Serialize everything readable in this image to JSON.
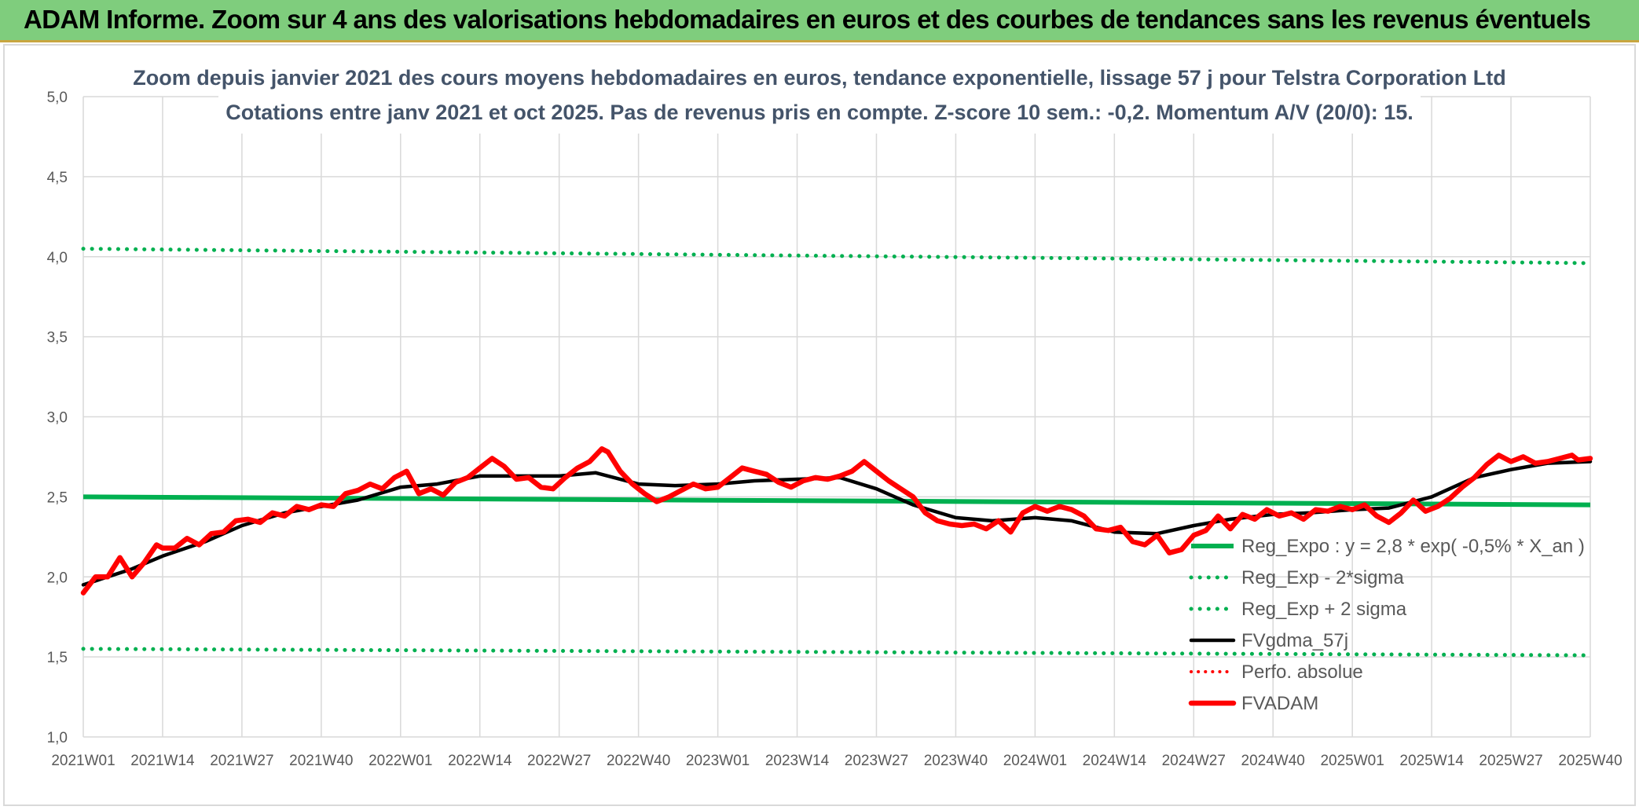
{
  "header": {
    "title": "ADAM Informe. Zoom sur 4 ans des valorisations hebdomadaires en euros et des courbes de tendances sans les revenus éventuels"
  },
  "chart_data": {
    "type": "line",
    "title_line1": "Zoom depuis janvier 2021 des cours moyens hebdomadaires en euros, tendance exponentielle, lissage 57 j pour Telstra Corporation Ltd",
    "title_line2": "Cotations entre janv 2021 et oct 2025. Pas de revenus pris en compte. Z-score 10 sem.: -0,2. Momentum A/V (20/0): 15.",
    "ylim": [
      1.0,
      5.0
    ],
    "ytick_labels": [
      "1,0",
      "1,5",
      "2,0",
      "2,5",
      "3,0",
      "3,5",
      "4,0",
      "4,5",
      "5,0"
    ],
    "ytick_values": [
      1.0,
      1.5,
      2.0,
      2.5,
      3.0,
      3.5,
      4.0,
      4.5,
      5.0
    ],
    "xlim": [
      0,
      247
    ],
    "xtick_labels": [
      "2021W01",
      "2021W14",
      "2021W27",
      "2021W40",
      "2022W01",
      "2022W14",
      "2022W27",
      "2022W40",
      "2023W01",
      "2023W14",
      "2023W27",
      "2023W40",
      "2024W01",
      "2024W14",
      "2024W27",
      "2024W40",
      "2025W01",
      "2025W14",
      "2025W27",
      "2025W40"
    ],
    "xtick_values": [
      0,
      13,
      26,
      39,
      52,
      65,
      78,
      91,
      104,
      117,
      130,
      143,
      156,
      169,
      182,
      195,
      208,
      221,
      234,
      247
    ],
    "grid": true,
    "legend_position": "bottom-right",
    "colors": {
      "green": "#00b050",
      "black": "#000000",
      "red": "#ff0000",
      "grid": "#d9d9d9"
    },
    "series": [
      {
        "name": "Reg_Expo : y = 2,8 * exp( -0,5% *  X_an )",
        "style": "solid-green",
        "x": [
          0,
          247
        ],
        "y": [
          2.5,
          2.45
        ]
      },
      {
        "name": "Reg_Exp - 2*sigma",
        "style": "dotted-green",
        "x": [
          0,
          247
        ],
        "y": [
          1.55,
          1.51
        ]
      },
      {
        "name": "Reg_Exp + 2 sigma",
        "style": "dotted-green",
        "x": [
          0,
          247
        ],
        "y": [
          4.05,
          3.96
        ]
      },
      {
        "name": "FVgdma_57j",
        "style": "solid-black",
        "x": [
          0,
          8,
          13,
          20,
          26,
          33,
          39,
          45,
          52,
          58,
          65,
          72,
          78,
          84,
          91,
          97,
          104,
          110,
          117,
          124,
          130,
          136,
          143,
          149,
          156,
          162,
          169,
          176,
          182,
          188,
          195,
          201,
          208,
          214,
          221,
          228,
          234,
          240,
          247
        ],
        "y": [
          1.95,
          2.05,
          2.13,
          2.22,
          2.32,
          2.4,
          2.44,
          2.48,
          2.56,
          2.58,
          2.63,
          2.63,
          2.63,
          2.65,
          2.58,
          2.57,
          2.58,
          2.6,
          2.61,
          2.62,
          2.55,
          2.45,
          2.37,
          2.35,
          2.37,
          2.35,
          2.28,
          2.27,
          2.32,
          2.36,
          2.39,
          2.4,
          2.42,
          2.43,
          2.5,
          2.62,
          2.67,
          2.71,
          2.72
        ]
      },
      {
        "name": "Perfo. absolue",
        "style": "dotted-red",
        "x": [],
        "y": []
      },
      {
        "name": "FVADAM",
        "style": "solid-red-thick",
        "x": [
          0,
          2,
          4,
          6,
          8,
          10,
          12,
          13,
          15,
          17,
          19,
          21,
          23,
          25,
          27,
          29,
          31,
          33,
          35,
          37,
          39,
          41,
          43,
          45,
          47,
          49,
          51,
          53,
          55,
          57,
          59,
          61,
          63,
          65,
          67,
          69,
          71,
          73,
          75,
          77,
          79,
          81,
          83,
          85,
          86,
          88,
          90,
          92,
          94,
          96,
          98,
          100,
          102,
          104,
          106,
          108,
          110,
          112,
          114,
          116,
          118,
          120,
          122,
          124,
          126,
          128,
          130,
          132,
          134,
          136,
          138,
          140,
          142,
          144,
          146,
          148,
          150,
          152,
          154,
          156,
          158,
          160,
          162,
          164,
          166,
          168,
          170,
          172,
          174,
          176,
          178,
          180,
          182,
          184,
          186,
          188,
          190,
          192,
          194,
          196,
          198,
          200,
          202,
          204,
          206,
          208,
          210,
          212,
          214,
          216,
          218,
          220,
          222,
          224,
          226,
          228,
          230,
          232,
          234,
          236,
          238,
          240,
          242,
          244,
          245,
          247
        ],
        "y": [
          1.9,
          2.0,
          2.0,
          2.12,
          2.0,
          2.09,
          2.2,
          2.18,
          2.18,
          2.24,
          2.2,
          2.27,
          2.28,
          2.35,
          2.36,
          2.34,
          2.4,
          2.38,
          2.44,
          2.42,
          2.45,
          2.44,
          2.52,
          2.54,
          2.58,
          2.55,
          2.62,
          2.66,
          2.52,
          2.55,
          2.51,
          2.59,
          2.62,
          2.68,
          2.74,
          2.69,
          2.61,
          2.62,
          2.56,
          2.55,
          2.62,
          2.68,
          2.72,
          2.8,
          2.78,
          2.66,
          2.58,
          2.52,
          2.47,
          2.5,
          2.54,
          2.58,
          2.55,
          2.56,
          2.62,
          2.68,
          2.66,
          2.64,
          2.59,
          2.56,
          2.6,
          2.62,
          2.61,
          2.63,
          2.66,
          2.72,
          2.66,
          2.6,
          2.55,
          2.5,
          2.4,
          2.35,
          2.33,
          2.32,
          2.33,
          2.3,
          2.35,
          2.28,
          2.4,
          2.44,
          2.41,
          2.44,
          2.42,
          2.38,
          2.3,
          2.29,
          2.31,
          2.22,
          2.2,
          2.26,
          2.15,
          2.17,
          2.26,
          2.29,
          2.38,
          2.3,
          2.39,
          2.36,
          2.42,
          2.38,
          2.4,
          2.36,
          2.42,
          2.41,
          2.44,
          2.42,
          2.45,
          2.38,
          2.34,
          2.4,
          2.48,
          2.41,
          2.44,
          2.49,
          2.56,
          2.62,
          2.7,
          2.76,
          2.72,
          2.75,
          2.71,
          2.72,
          2.74,
          2.76,
          2.73,
          2.74
        ]
      }
    ]
  }
}
